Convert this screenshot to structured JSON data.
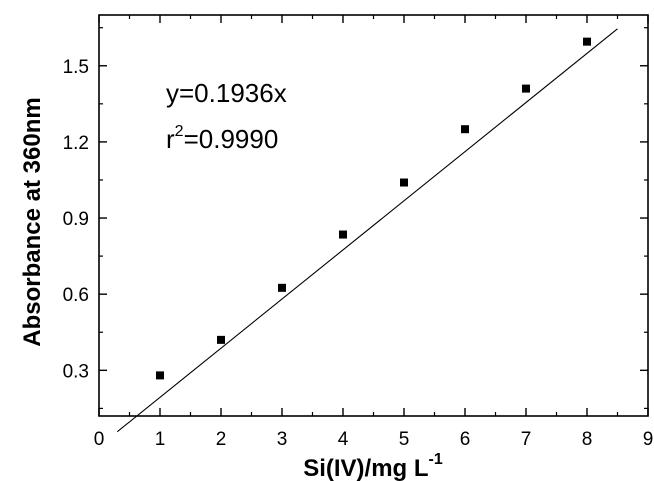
{
  "chart_data": {
    "type": "scatter",
    "x": [
      1,
      2,
      3,
      4,
      5,
      6,
      7,
      8
    ],
    "y": [
      0.28,
      0.42,
      0.625,
      0.835,
      1.04,
      1.25,
      1.41,
      1.595
    ],
    "xlim": [
      0,
      9
    ],
    "ylim": [
      0.12,
      1.7
    ],
    "xticks": [
      0,
      1,
      2,
      3,
      4,
      5,
      6,
      7,
      8,
      9
    ],
    "xtick_labels": [
      "0",
      "1",
      "2",
      "3",
      "4",
      "5",
      "6",
      "7",
      "8",
      "9"
    ],
    "yticks": [
      0.3,
      0.6,
      0.9,
      1.2,
      1.5
    ],
    "ytick_labels": [
      "0.3",
      "0.6",
      "0.9",
      "1.2",
      "1.5"
    ],
    "xlabel": "Si(IV)/mg L",
    "xlabel_superscript": "-1",
    "ylabel": "Absorbance at 360nm",
    "fit_line": {
      "slope": 0.1936,
      "intercept": 0,
      "x_range": [
        0.3,
        8.5
      ]
    },
    "annotations": {
      "equation": "y=0.1936x",
      "r_prefix": "r",
      "r_superscript": "2",
      "r_value": "=0.9990"
    },
    "grid": false,
    "legend": "none",
    "marker": "square",
    "marker_color": "#000000"
  }
}
